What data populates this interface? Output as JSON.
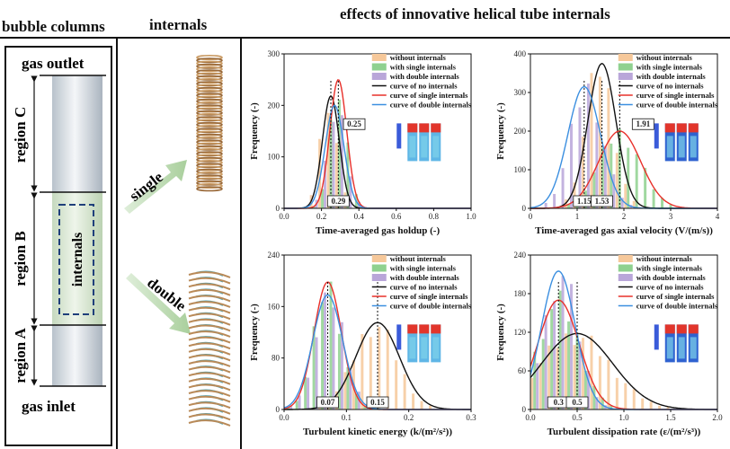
{
  "headers": {
    "bubble_columns": "bubble columns",
    "internals": "internals",
    "effects": "effects of innovative helical tube internals"
  },
  "column": {
    "gas_outlet": "gas outlet",
    "gas_inlet": "gas inlet",
    "region_a": "region A",
    "region_b": "region B",
    "region_c": "region C",
    "internals_label": "internals"
  },
  "arrows": {
    "single": "single",
    "double": "double"
  },
  "colors": {
    "without": "#f6c89a",
    "single_bar": "#8fd18f",
    "double_bar": "#b9a6d9",
    "curve_none": "#111111",
    "curve_single": "#e8302a",
    "curve_double": "#3b8fe0",
    "column_fill": "#d9e8d3",
    "arrow": "#b9d7b0"
  },
  "legend": [
    "without internals",
    "with single internals",
    "with double internals",
    "curve of no internals",
    "curve of single internals",
    "curve of double internals"
  ],
  "chart_data": [
    {
      "type": "bar",
      "xlabel": "Time-averaged gas holdup (-)",
      "ylabel": "Frequency (-)",
      "xlim": [
        0.0,
        1.0
      ],
      "ylim": [
        0,
        300
      ],
      "xticks": [
        0.0,
        0.2,
        0.4,
        0.6,
        0.8,
        1.0
      ],
      "yticks": [
        0,
        100,
        200,
        300
      ],
      "annotations": [
        "0.25",
        "0.29"
      ],
      "peaks": {
        "none": 0.25,
        "single": 0.29,
        "double": 0.27
      },
      "sigma": {
        "none": 0.045,
        "single": 0.045,
        "double": 0.05
      },
      "amp": {
        "none": 218,
        "single": 250,
        "double": 200
      }
    },
    {
      "type": "bar",
      "xlabel": "Time-averaged gas axial velocity (V/(m/s))",
      "ylabel": "Frequency (-)",
      "xlim": [
        0,
        4
      ],
      "ylim": [
        0,
        400
      ],
      "xticks": [
        0,
        1,
        2,
        3,
        4
      ],
      "yticks": [
        0,
        100,
        200,
        300,
        400
      ],
      "annotations": [
        "1.15",
        "1.53",
        "1.91"
      ],
      "peaks": {
        "none": 1.53,
        "single": 1.91,
        "double": 1.15
      },
      "sigma": {
        "none": 0.3,
        "single": 0.45,
        "double": 0.35
      },
      "amp": {
        "none": 375,
        "single": 200,
        "double": 315
      }
    },
    {
      "type": "bar",
      "xlabel": "Turbulent kinetic energy (k/(m²/s²))",
      "ylabel": "Frequency (-)",
      "xlim": [
        0.0,
        0.3
      ],
      "ylim": [
        0,
        240
      ],
      "xticks": [
        0.0,
        0.1,
        0.2,
        0.3
      ],
      "yticks": [
        0,
        80,
        160,
        240
      ],
      "annotations": [
        "0.07",
        "0.15"
      ],
      "peaks": {
        "none": 0.15,
        "single": 0.07,
        "double": 0.07
      },
      "sigma": {
        "none": 0.035,
        "single": 0.022,
        "double": 0.024
      },
      "amp": {
        "none": 135,
        "single": 198,
        "double": 178
      }
    },
    {
      "type": "bar",
      "xlabel": "Turbulent dissipation rate (ε/(m²/s³))",
      "ylabel": "Frequency (-)",
      "xlim": [
        0.0,
        2.0
      ],
      "ylim": [
        0,
        240
      ],
      "xticks": [
        0.0,
        0.5,
        1.0,
        1.5,
        2.0
      ],
      "yticks": [
        0,
        60,
        120,
        180,
        240
      ],
      "annotations": [
        "0.3",
        "0.5"
      ],
      "peaks": {
        "none": 0.5,
        "single": 0.3,
        "double": 0.3
      },
      "sigma": {
        "none": 0.38,
        "single": 0.22,
        "double": 0.18
      },
      "amp": {
        "none": 118,
        "single": 170,
        "double": 215
      }
    }
  ]
}
